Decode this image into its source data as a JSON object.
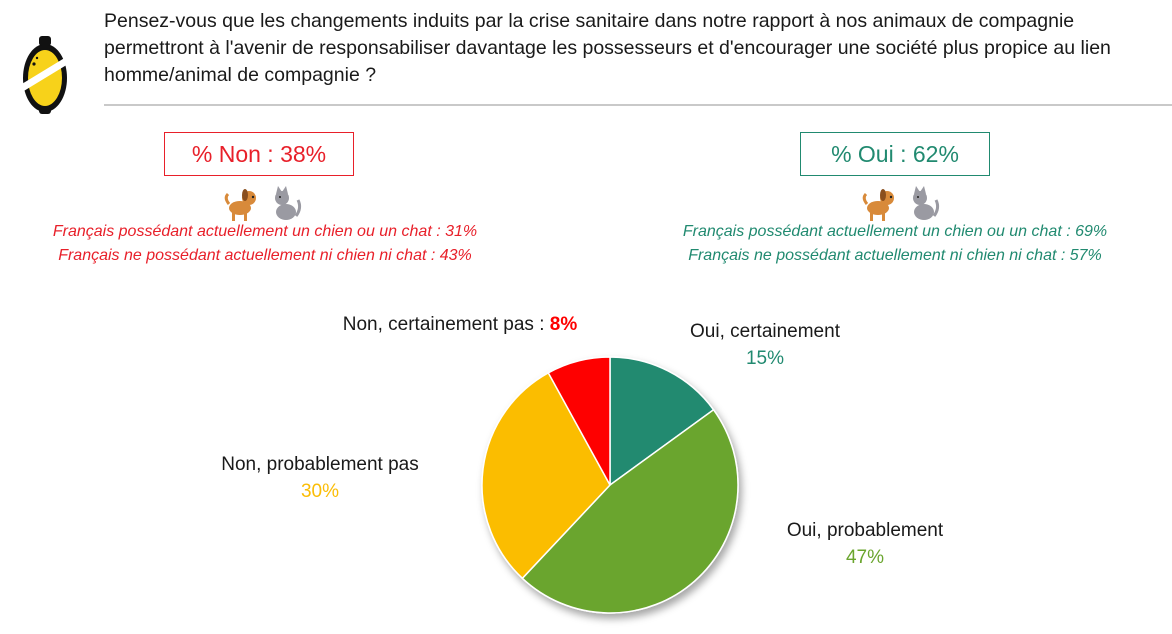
{
  "question": "Pensez-vous que les changements induits par la crise sanitaire dans notre rapport à nos animaux de compagnie permettront à l'avenir de responsabiliser davantage les possesseurs et d'encourager une société plus propice au lien homme/animal de compagnie ?",
  "summary": {
    "non": {
      "label": "% Non : 38%",
      "line1": "Français possédant actuellement un chien ou un chat : 31%",
      "line2": "Français ne possédant actuellement ni chien ni chat : 43%",
      "color": "#e8202a"
    },
    "oui": {
      "label": "% Oui : 62%",
      "line1": "Français possédant actuellement un chien ou un chat : 69%",
      "line2": "Français ne possédant actuellement ni chien ni chat : 57%",
      "color": "#218a70"
    }
  },
  "icons": [
    "logo-icon",
    "dog-icon",
    "cat-icon"
  ],
  "chart_data": {
    "type": "pie",
    "title": "",
    "slices": [
      {
        "label": "Oui, certainement",
        "value": 15,
        "value_label": "15%",
        "color": "#218a70"
      },
      {
        "label": "Oui, probablement",
        "value": 47,
        "value_label": "47%",
        "color": "#6aa52e"
      },
      {
        "label": "Non, probablement pas",
        "value": 30,
        "value_label": "30%",
        "color": "#fbbd06"
      },
      {
        "label": "Non, certainement pas",
        "value": 8,
        "value_label": "8%",
        "color": "#fe0000"
      }
    ]
  }
}
